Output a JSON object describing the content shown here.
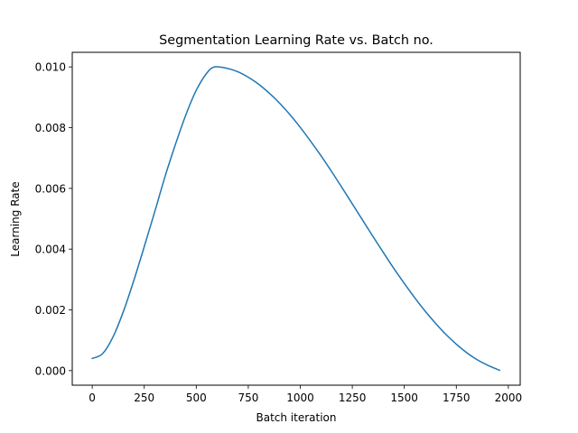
{
  "chart_data": {
    "type": "line",
    "title": "Segmentation Learning Rate vs. Batch no.",
    "xlabel": "Batch iteration",
    "ylabel": "Learning Rate",
    "xlim": [
      -96,
      2057
    ],
    "ylim": [
      -0.00048,
      0.01048
    ],
    "xticks": [
      0,
      250,
      500,
      750,
      1000,
      1250,
      1500,
      1750,
      2000
    ],
    "xtick_labels": [
      "0",
      "250",
      "500",
      "750",
      "1000",
      "1250",
      "1500",
      "1750",
      "2000"
    ],
    "yticks": [
      0.0,
      0.002,
      0.004,
      0.006,
      0.008,
      0.01
    ],
    "ytick_labels": [
      "0.000",
      "0.002",
      "0.004",
      "0.006",
      "0.008",
      "0.010"
    ],
    "grid": false,
    "legend": "none",
    "line_color": "#1f77b4",
    "series": [
      {
        "x": [
          0,
          50,
          100,
          150,
          200,
          250,
          300,
          350,
          400,
          450,
          500,
          550,
          588,
          650,
          700,
          750,
          800,
          850,
          900,
          950,
          1000,
          1050,
          1100,
          1150,
          1200,
          1250,
          1300,
          1350,
          1400,
          1450,
          1500,
          1550,
          1600,
          1650,
          1700,
          1750,
          1800,
          1850,
          1900,
          1958
        ],
        "y": [
          0.0004,
          0.00056,
          0.00111,
          0.00195,
          0.00297,
          0.00408,
          0.00522,
          0.00639,
          0.00745,
          0.00842,
          0.00923,
          0.00979,
          0.01,
          0.00995,
          0.00984,
          0.00966,
          0.00943,
          0.00914,
          0.00881,
          0.00843,
          0.00801,
          0.00755,
          0.00707,
          0.00656,
          0.00603,
          0.00549,
          0.00495,
          0.00441,
          0.00388,
          0.00336,
          0.00287,
          0.0024,
          0.00196,
          0.00156,
          0.00119,
          0.00087,
          0.00059,
          0.00036,
          0.00018,
          1e-05
        ]
      }
    ]
  }
}
